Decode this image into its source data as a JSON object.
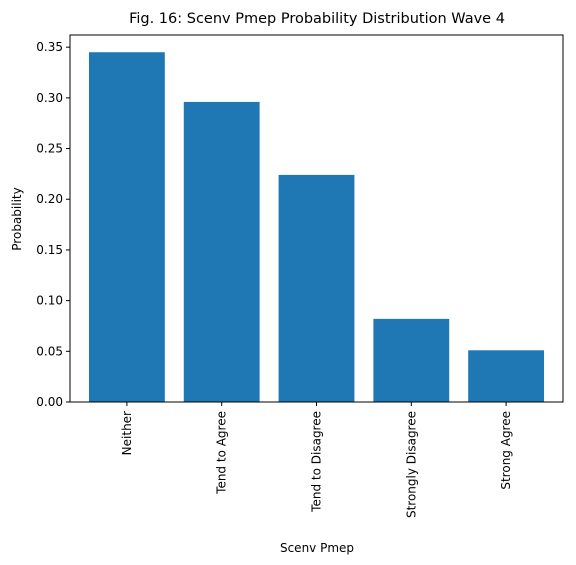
{
  "chart_data": {
    "type": "bar",
    "title": "Fig. 16: Scenv Pmep Probability Distribution Wave 4",
    "xlabel": "Scenv Pmep",
    "ylabel": "Probability",
    "categories": [
      "Neither",
      "Tend to Agree",
      "Tend to Disagree",
      "Strongly Disagree",
      "Strong Agree"
    ],
    "values": [
      0.345,
      0.296,
      0.224,
      0.082,
      0.051
    ],
    "ylim": [
      0,
      0.362
    ],
    "yticks": [
      "0.00",
      "0.05",
      "0.10",
      "0.15",
      "0.20",
      "0.25",
      "0.30",
      "0.35"
    ],
    "bar_color": "#1f77b4",
    "grid": false,
    "legend": "none"
  }
}
